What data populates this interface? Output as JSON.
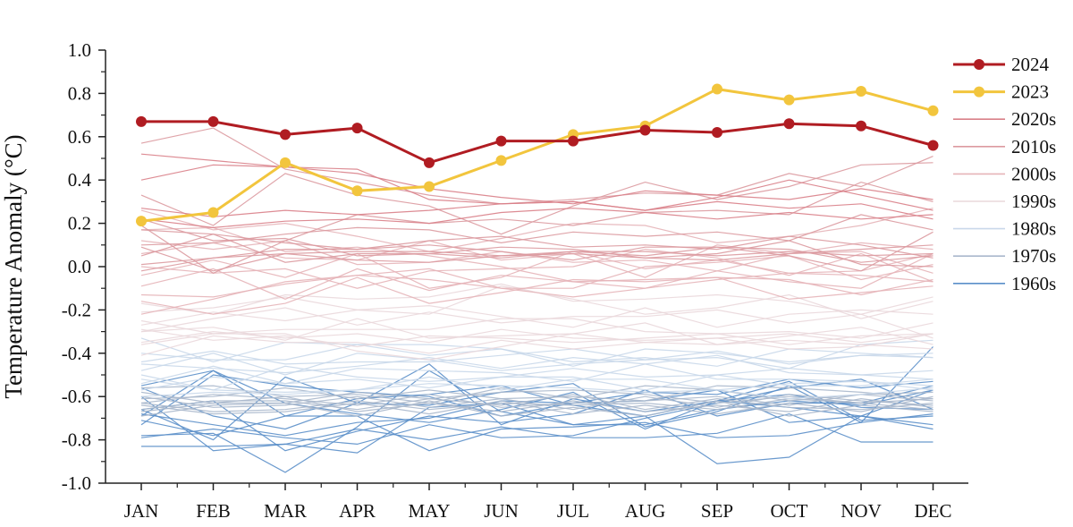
{
  "chart_data": {
    "type": "line",
    "title": "",
    "xlabel": "",
    "ylabel": "Temperature Anomaly (°C)",
    "categories": [
      "JAN",
      "FEB",
      "MAR",
      "APR",
      "MAY",
      "JUN",
      "JUL",
      "AUG",
      "SEP",
      "OCT",
      "NOV",
      "DEC"
    ],
    "ylim": [
      -1.0,
      1.0
    ],
    "yticks": [
      "-1.0",
      "-0.8",
      "-0.6",
      "-0.4",
      "-0.2",
      "0.0",
      "0.2",
      "0.4",
      "0.6",
      "0.8",
      "1.0"
    ],
    "grid": false,
    "legend_position": "right",
    "series": [
      {
        "name": "2024",
        "color": "#b01c22",
        "markers": true,
        "values": [
          0.67,
          0.67,
          0.61,
          0.64,
          0.48,
          0.58,
          0.58,
          0.63,
          0.62,
          0.66,
          0.65,
          0.56
        ]
      },
      {
        "name": "2023",
        "color": "#f2c53d",
        "markers": true,
        "values": [
          0.21,
          0.25,
          0.48,
          0.35,
          0.37,
          0.49,
          0.61,
          0.65,
          0.82,
          0.77,
          0.81,
          0.72
        ]
      }
    ],
    "decades": [
      {
        "name": "2020s",
        "color": "#d98088",
        "values": [
          [
            0.52,
            0.49,
            0.46,
            0.45,
            0.31,
            0.29,
            0.3,
            0.26,
            0.32,
            0.4,
            0.33,
            0.26
          ],
          [
            0.4,
            0.47,
            0.46,
            0.43,
            0.36,
            0.32,
            0.29,
            0.35,
            0.33,
            0.31,
            0.36,
            0.31
          ],
          [
            0.27,
            0.23,
            0.26,
            0.24,
            0.26,
            0.29,
            0.3,
            0.26,
            0.3,
            0.27,
            0.29,
            0.22
          ],
          [
            0.22,
            0.18,
            0.21,
            0.22,
            0.2,
            0.25,
            0.27,
            0.25,
            0.22,
            0.25,
            0.22,
            0.24
          ]
        ]
      },
      {
        "name": "2010s",
        "color": "#dc9aa0",
        "values": [
          [
            0.57,
            0.64,
            0.45,
            0.39,
            0.33,
            0.29,
            0.31,
            0.34,
            0.33,
            0.43,
            0.37,
            0.51
          ],
          [
            0.33,
            0.19,
            0.43,
            0.33,
            0.28,
            0.15,
            0.28,
            0.39,
            0.31,
            0.37,
            0.47,
            0.48
          ],
          [
            0.19,
            -0.03,
            0.12,
            0.24,
            0.2,
            0.22,
            0.19,
            0.25,
            0.26,
            0.24,
            0.39,
            0.3
          ],
          [
            0.1,
            0.11,
            0.15,
            0.18,
            0.17,
            0.11,
            0.16,
            0.14,
            0.16,
            0.12,
            0.24,
            0.17
          ],
          [
            0.05,
            0.15,
            0.11,
            0.08,
            0.12,
            0.14,
            0.09,
            0.1,
            0.08,
            0.14,
            0.1,
            0.04
          ],
          [
            -0.02,
            0.04,
            0.08,
            0.08,
            0.1,
            0.07,
            0.03,
            0.09,
            0.09,
            0.08,
            0.02,
            0.05
          ],
          [
            0.17,
            0.15,
            0.02,
            0.06,
            0.06,
            0.04,
            0.07,
            0.07,
            0.05,
            0.07,
            0.05,
            0.06
          ],
          [
            0.01,
            0.04,
            0.06,
            0.07,
            0.07,
            0.05,
            0.07,
            0.05,
            0.09,
            0.05,
            -0.02,
            0.16
          ],
          [
            0.09,
            -0.02,
            0.06,
            0.03,
            0.02,
            0.05,
            0.06,
            0.04,
            0.06,
            0.12,
            0.01,
            0.0
          ],
          [
            0.22,
            0.12,
            0.13,
            0.05,
            0.06,
            0.09,
            0.08,
            0.04,
            0.03,
            0.06,
            0.08,
            0.1
          ]
        ]
      },
      {
        "name": "2000s",
        "color": "#e6b4b8",
        "values": [
          [
            0.26,
            0.17,
            0.2,
            0.14,
            0.07,
            0.13,
            0.2,
            0.19,
            0.11,
            0.14,
            0.19,
            0.27
          ],
          [
            0.06,
            0.11,
            0.04,
            0.03,
            0.12,
            0.03,
            0.06,
            -0.05,
            0.1,
            0.06,
            0.11,
            0.08
          ],
          [
            -0.04,
            0.03,
            -0.05,
            0.06,
            -0.1,
            -0.05,
            0.07,
            -0.01,
            0.03,
            -0.03,
            -0.02,
            0.06
          ],
          [
            0.12,
            0.08,
            0.12,
            0.01,
            0.02,
            0.07,
            0.02,
            0.03,
            -0.02,
            0.06,
            0.07,
            -0.03
          ],
          [
            0.0,
            -0.03,
            -0.01,
            -0.1,
            -0.02,
            -0.01,
            0.0,
            0.08,
            0.04,
            -0.04,
            0.06,
            -0.07
          ],
          [
            -0.13,
            -0.14,
            -0.08,
            -0.04,
            -0.01,
            -0.1,
            -0.1,
            0.0,
            0.02,
            0.05,
            -0.06,
            0.01
          ],
          [
            0.17,
            0.18,
            0.07,
            0.09,
            0.05,
            0.0,
            -0.07,
            -0.06,
            -0.05,
            -0.06,
            -0.13,
            -0.06
          ],
          [
            -0.09,
            -0.01,
            -0.15,
            -0.01,
            -0.11,
            -0.04,
            -0.07,
            -0.1,
            -0.06,
            -0.03,
            -0.04,
            -0.07
          ],
          [
            -0.22,
            -0.15,
            -0.07,
            -0.04,
            -0.06,
            -0.1,
            -0.14,
            -0.1,
            -0.02,
            -0.07,
            -0.1,
            0.06
          ],
          [
            -0.16,
            -0.22,
            -0.17,
            -0.05,
            -0.17,
            -0.12,
            -0.06,
            -0.07,
            -0.05,
            -0.15,
            -0.12,
            -0.09
          ]
        ]
      },
      {
        "name": "1990s",
        "color": "#ead8dc",
        "values": [
          [
            -0.17,
            -0.22,
            -0.13,
            -0.15,
            -0.14,
            -0.08,
            -0.16,
            -0.15,
            -0.13,
            -0.16,
            -0.22,
            -0.14
          ],
          [
            -0.21,
            -0.19,
            -0.14,
            -0.2,
            -0.22,
            -0.09,
            -0.15,
            -0.22,
            -0.19,
            -0.13,
            -0.24,
            -0.16
          ],
          [
            -0.27,
            -0.21,
            -0.25,
            -0.2,
            -0.18,
            -0.23,
            -0.28,
            -0.19,
            -0.28,
            -0.22,
            -0.2,
            -0.22
          ],
          [
            -0.3,
            -0.24,
            -0.19,
            -0.27,
            -0.21,
            -0.26,
            -0.23,
            -0.23,
            -0.2,
            -0.26,
            -0.22,
            -0.33
          ],
          [
            -0.25,
            -0.31,
            -0.29,
            -0.29,
            -0.29,
            -0.24,
            -0.24,
            -0.3,
            -0.31,
            -0.3,
            -0.33,
            -0.26
          ],
          [
            -0.3,
            -0.28,
            -0.34,
            -0.24,
            -0.33,
            -0.32,
            -0.31,
            -0.26,
            -0.36,
            -0.32,
            -0.28,
            -0.36
          ],
          [
            -0.35,
            -0.3,
            -0.33,
            -0.31,
            -0.35,
            -0.29,
            -0.33,
            -0.34,
            -0.33,
            -0.31,
            -0.35,
            -0.31
          ],
          [
            -0.29,
            -0.34,
            -0.32,
            -0.37,
            -0.32,
            -0.33,
            -0.35,
            -0.33,
            -0.31,
            -0.36,
            -0.32,
            -0.31
          ],
          [
            -0.41,
            -0.32,
            -0.35,
            -0.35,
            -0.4,
            -0.34,
            -0.38,
            -0.35,
            -0.36,
            -0.34,
            -0.36,
            -0.38
          ],
          [
            -0.36,
            -0.31,
            -0.31,
            -0.39,
            -0.43,
            -0.37,
            -0.31,
            -0.35,
            -0.33,
            -0.38,
            -0.37,
            -0.31
          ]
        ]
      },
      {
        "name": "1980s",
        "color": "#c9d8ea",
        "values": [
          [
            -0.33,
            -0.44,
            -0.35,
            -0.36,
            -0.41,
            -0.38,
            -0.44,
            -0.42,
            -0.46,
            -0.38,
            -0.4,
            -0.42
          ],
          [
            -0.44,
            -0.39,
            -0.45,
            -0.44,
            -0.44,
            -0.41,
            -0.38,
            -0.43,
            -0.42,
            -0.47,
            -0.36,
            -0.34
          ],
          [
            -0.4,
            -0.43,
            -0.43,
            -0.36,
            -0.36,
            -0.38,
            -0.46,
            -0.38,
            -0.4,
            -0.44,
            -0.41,
            -0.4
          ],
          [
            -0.48,
            -0.4,
            -0.5,
            -0.4,
            -0.43,
            -0.48,
            -0.45,
            -0.43,
            -0.39,
            -0.45,
            -0.41,
            -0.42
          ],
          [
            -0.45,
            -0.47,
            -0.49,
            -0.46,
            -0.42,
            -0.47,
            -0.42,
            -0.45,
            -0.41,
            -0.49,
            -0.5,
            -0.52
          ],
          [
            -0.54,
            -0.46,
            -0.54,
            -0.47,
            -0.48,
            -0.49,
            -0.53,
            -0.45,
            -0.52,
            -0.52,
            -0.53,
            -0.55
          ],
          [
            -0.5,
            -0.57,
            -0.46,
            -0.51,
            -0.53,
            -0.51,
            -0.51,
            -0.57,
            -0.5,
            -0.47,
            -0.5,
            -0.48
          ],
          [
            -0.57,
            -0.51,
            -0.54,
            -0.52,
            -0.56,
            -0.51,
            -0.47,
            -0.51,
            -0.5,
            -0.55,
            -0.55,
            -0.52
          ],
          [
            -0.52,
            -0.57,
            -0.58,
            -0.57,
            -0.51,
            -0.57,
            -0.52,
            -0.52,
            -0.57,
            -0.54,
            -0.53,
            -0.57
          ],
          [
            -0.6,
            -0.58,
            -0.59,
            -0.57,
            -0.54,
            -0.55,
            -0.56,
            -0.58,
            -0.57,
            -0.61,
            -0.59,
            -0.56
          ]
        ]
      },
      {
        "name": "1970s",
        "color": "#aab8cc",
        "values": [
          [
            -0.56,
            -0.55,
            -0.6,
            -0.59,
            -0.63,
            -0.56,
            -0.61,
            -0.55,
            -0.57,
            -0.62,
            -0.59,
            -0.58
          ],
          [
            -0.61,
            -0.6,
            -0.56,
            -0.61,
            -0.57,
            -0.61,
            -0.6,
            -0.62,
            -0.55,
            -0.56,
            -0.58,
            -0.61
          ],
          [
            -0.58,
            -0.63,
            -0.63,
            -0.58,
            -0.61,
            -0.58,
            -0.57,
            -0.59,
            -0.63,
            -0.6,
            -0.63,
            -0.61
          ],
          [
            -0.63,
            -0.59,
            -0.61,
            -0.64,
            -0.59,
            -0.65,
            -0.63,
            -0.62,
            -0.6,
            -0.64,
            -0.59,
            -0.62
          ],
          [
            -0.6,
            -0.65,
            -0.64,
            -0.6,
            -0.65,
            -0.61,
            -0.66,
            -0.6,
            -0.65,
            -0.59,
            -0.62,
            -0.64
          ],
          [
            -0.66,
            -0.62,
            -0.62,
            -0.66,
            -0.61,
            -0.64,
            -0.59,
            -0.66,
            -0.61,
            -0.65,
            -0.66,
            -0.63
          ],
          [
            -0.63,
            -0.67,
            -0.66,
            -0.62,
            -0.66,
            -0.63,
            -0.64,
            -0.63,
            -0.66,
            -0.61,
            -0.63,
            -0.66
          ],
          [
            -0.67,
            -0.63,
            -0.6,
            -0.67,
            -0.63,
            -0.67,
            -0.62,
            -0.67,
            -0.64,
            -0.67,
            -0.61,
            -0.65
          ],
          [
            -0.64,
            -0.68,
            -0.67,
            -0.63,
            -0.68,
            -0.62,
            -0.68,
            -0.64,
            -0.68,
            -0.63,
            -0.67,
            -0.6
          ],
          [
            -0.69,
            -0.64,
            -0.63,
            -0.69,
            -0.62,
            -0.69,
            -0.65,
            -0.69,
            -0.62,
            -0.69,
            -0.64,
            -0.67
          ]
        ]
      },
      {
        "name": "1960s",
        "color": "#5b8fc9",
        "values": [
          [
            -0.69,
            -0.48,
            -0.63,
            -0.68,
            -0.72,
            -0.66,
            -0.58,
            -0.75,
            -0.62,
            -0.59,
            -0.65,
            -0.66
          ],
          [
            -0.73,
            -0.5,
            -0.55,
            -0.58,
            -0.6,
            -0.69,
            -0.63,
            -0.62,
            -0.57,
            -0.72,
            -0.69,
            -0.57
          ],
          [
            -0.66,
            -0.62,
            -0.85,
            -0.76,
            -0.69,
            -0.72,
            -0.68,
            -0.57,
            -0.69,
            -0.63,
            -0.63,
            -0.55
          ],
          [
            -0.78,
            -0.77,
            -0.95,
            -0.74,
            -0.48,
            -0.67,
            -0.73,
            -0.73,
            -0.66,
            -0.62,
            -0.64,
            -0.57
          ],
          [
            -0.56,
            -0.69,
            -0.75,
            -0.63,
            -0.64,
            -0.58,
            -0.54,
            -0.74,
            -0.67,
            -0.55,
            -0.72,
            -0.37
          ],
          [
            -0.6,
            -0.85,
            -0.82,
            -0.75,
            -0.8,
            -0.74,
            -0.79,
            -0.79,
            -0.77,
            -0.68,
            -0.81,
            -0.81
          ],
          [
            -0.68,
            -0.73,
            -0.78,
            -0.72,
            -0.7,
            -0.62,
            -0.63,
            -0.58,
            -0.59,
            -0.52,
            -0.56,
            -0.53
          ],
          [
            -0.55,
            -0.48,
            -0.69,
            -0.61,
            -0.59,
            -0.55,
            -0.64,
            -0.69,
            -0.62,
            -0.65,
            -0.69,
            -0.73
          ],
          [
            -0.83,
            -0.83,
            -0.82,
            -0.86,
            -0.65,
            -0.63,
            -0.73,
            -0.69,
            -0.91,
            -0.88,
            -0.69,
            -0.75
          ],
          [
            -0.71,
            -0.78,
            -0.69,
            -0.69,
            -0.85,
            -0.75,
            -0.74,
            -0.72,
            -0.79,
            -0.78,
            -0.72,
            -0.68
          ],
          [
            -0.79,
            -0.75,
            -0.79,
            -0.82,
            -0.73,
            -0.79,
            -0.78,
            -0.7,
            -0.63,
            -0.56,
            -0.52,
            -0.66
          ],
          [
            -0.66,
            -0.8,
            -0.51,
            -0.63,
            -0.45,
            -0.73,
            -0.61,
            -0.67,
            -0.62,
            -0.53,
            -0.71,
            -0.69
          ]
        ]
      }
    ]
  }
}
